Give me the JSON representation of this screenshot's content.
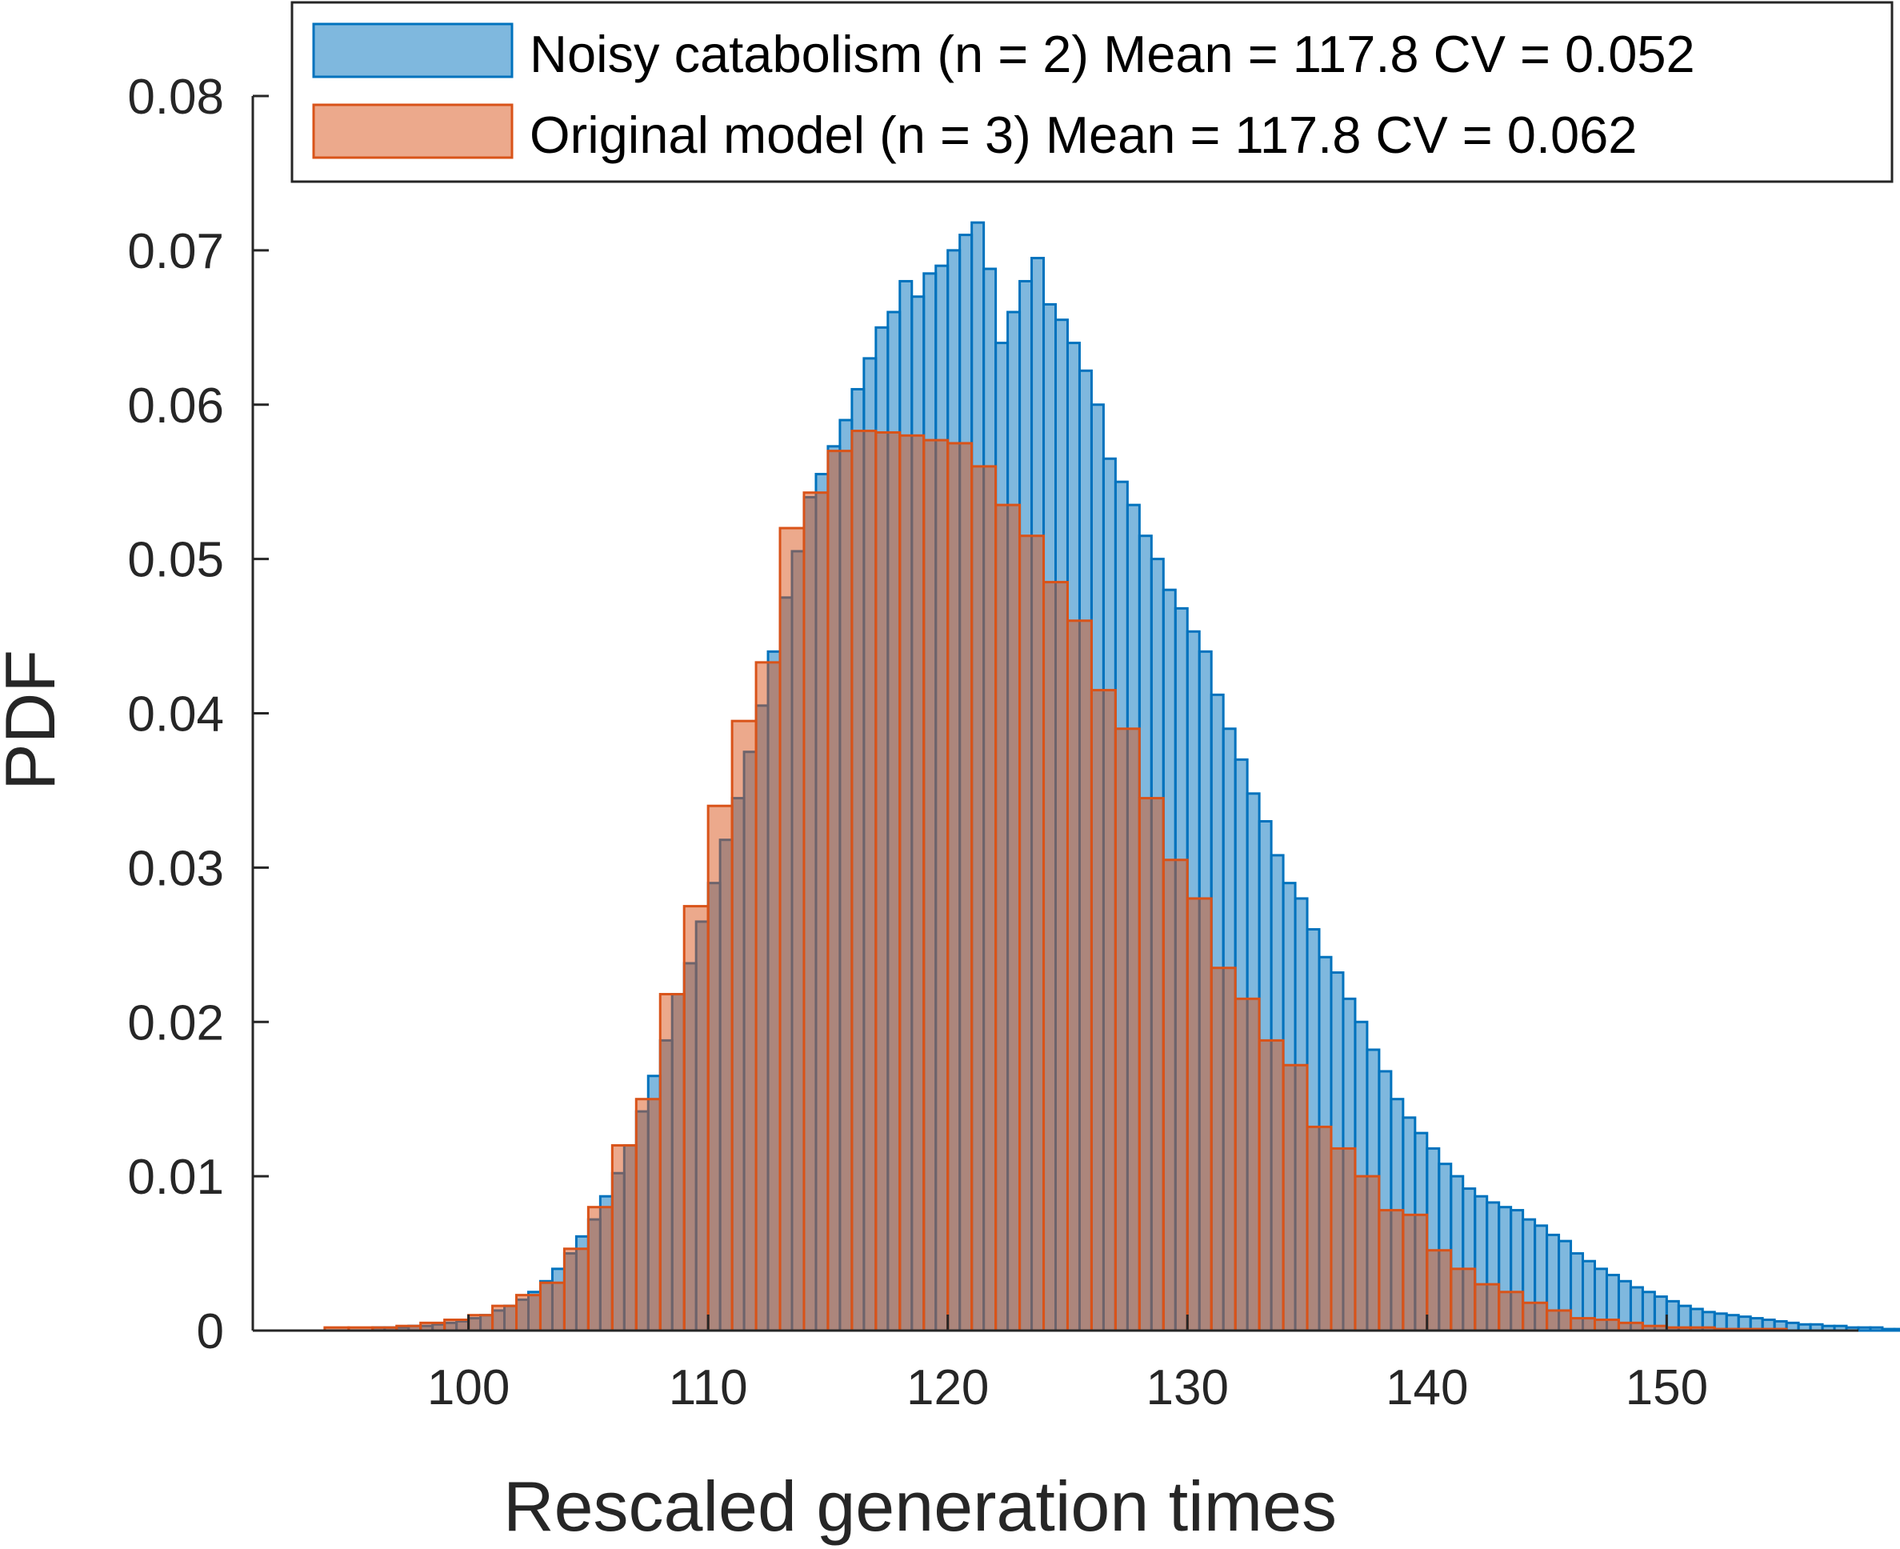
{
  "chart_data": {
    "type": "bar",
    "subtype": "overlaid histogram",
    "title": "",
    "xlabel": "Rescaled generation times",
    "ylabel": "PDF",
    "xlim": [
      91,
      158
    ],
    "ylim": [
      0,
      0.08
    ],
    "xticks": [
      100,
      110,
      120,
      130,
      140,
      150
    ],
    "yticks": [
      0,
      0.01,
      0.02,
      0.03,
      0.04,
      0.05,
      0.06,
      0.07,
      0.08
    ],
    "xtick_labels": [
      "100",
      "110",
      "120",
      "130",
      "140",
      "150"
    ],
    "ytick_labels": [
      "0",
      "0.01",
      "0.02",
      "0.03",
      "0.04",
      "0.05",
      "0.06",
      "0.07",
      "0.08"
    ],
    "grid": false,
    "legend_position": "top-right",
    "series": [
      {
        "name": "Noisy catabolism (n = 2) Mean = 117.8 CV = 0.052",
        "fill": "#0072BD",
        "edge": "#0072BD",
        "fill_opacity": 0.5,
        "bin_start": 96.0,
        "bin_width": 0.5,
        "values": [
          0.0002,
          0.0002,
          0.0002,
          0.0003,
          0.0003,
          0.0004,
          0.0005,
          0.0006,
          0.0008,
          0.001,
          0.0013,
          0.0016,
          0.002,
          0.0025,
          0.0032,
          0.004,
          0.005,
          0.0061,
          0.0072,
          0.0087,
          0.0102,
          0.012,
          0.0142,
          0.0165,
          0.0188,
          0.0218,
          0.0238,
          0.0265,
          0.029,
          0.0318,
          0.0345,
          0.0375,
          0.0405,
          0.044,
          0.0475,
          0.0505,
          0.054,
          0.0555,
          0.0573,
          0.059,
          0.061,
          0.063,
          0.065,
          0.066,
          0.068,
          0.067,
          0.0685,
          0.069,
          0.07,
          0.071,
          0.0718,
          0.0688,
          0.064,
          0.066,
          0.068,
          0.0695,
          0.0665,
          0.0655,
          0.064,
          0.0622,
          0.06,
          0.0565,
          0.055,
          0.0535,
          0.0515,
          0.05,
          0.048,
          0.0468,
          0.0453,
          0.044,
          0.0412,
          0.039,
          0.037,
          0.0348,
          0.033,
          0.0308,
          0.029,
          0.028,
          0.026,
          0.0242,
          0.0232,
          0.0215,
          0.02,
          0.0182,
          0.0168,
          0.015,
          0.0138,
          0.0128,
          0.0118,
          0.0108,
          0.01,
          0.0092,
          0.0087,
          0.0083,
          0.008,
          0.0078,
          0.0072,
          0.0068,
          0.0062,
          0.0058,
          0.005,
          0.0045,
          0.004,
          0.0036,
          0.0032,
          0.0028,
          0.0025,
          0.0022,
          0.0019,
          0.0016,
          0.0014,
          0.0012,
          0.0011,
          0.001,
          0.0009,
          0.0008,
          0.0007,
          0.0006,
          0.0005,
          0.0004,
          0.0004,
          0.0003,
          0.0003,
          0.0002,
          0.0002,
          0.0002,
          0.0001,
          0.0001,
          0.0001,
          0.0001,
          0.0001,
          0.0001,
          0.0001,
          0.0001,
          0.0001,
          0.0001,
          0.0001,
          0.0001,
          0.0001,
          0.0001,
          0.0001,
          0.0001,
          0.0001,
          0.0001,
          0.0001,
          0.0001
        ]
      },
      {
        "name": "Original model (n = 3) Mean = 117.8 CV = 0.062",
        "fill": "#D95319",
        "edge": "#D95319",
        "fill_opacity": 0.5,
        "bin_start": 94.0,
        "bin_width": 1.0,
        "values": [
          0.0002,
          0.0002,
          0.0002,
          0.0003,
          0.0005,
          0.0007,
          0.001,
          0.0016,
          0.0023,
          0.0031,
          0.0053,
          0.008,
          0.012,
          0.015,
          0.0218,
          0.0275,
          0.034,
          0.0395,
          0.0433,
          0.052,
          0.0543,
          0.057,
          0.0583,
          0.0582,
          0.058,
          0.0577,
          0.0575,
          0.056,
          0.0535,
          0.0515,
          0.0485,
          0.046,
          0.0415,
          0.039,
          0.0345,
          0.0305,
          0.028,
          0.0235,
          0.0215,
          0.0188,
          0.0172,
          0.0132,
          0.0118,
          0.01,
          0.0078,
          0.0075,
          0.0052,
          0.004,
          0.003,
          0.0025,
          0.0018,
          0.0013,
          0.0008,
          0.0007,
          0.0005,
          0.0003,
          0.0002,
          0.0002,
          0.0001,
          0.0001,
          0.0001
        ]
      }
    ]
  }
}
